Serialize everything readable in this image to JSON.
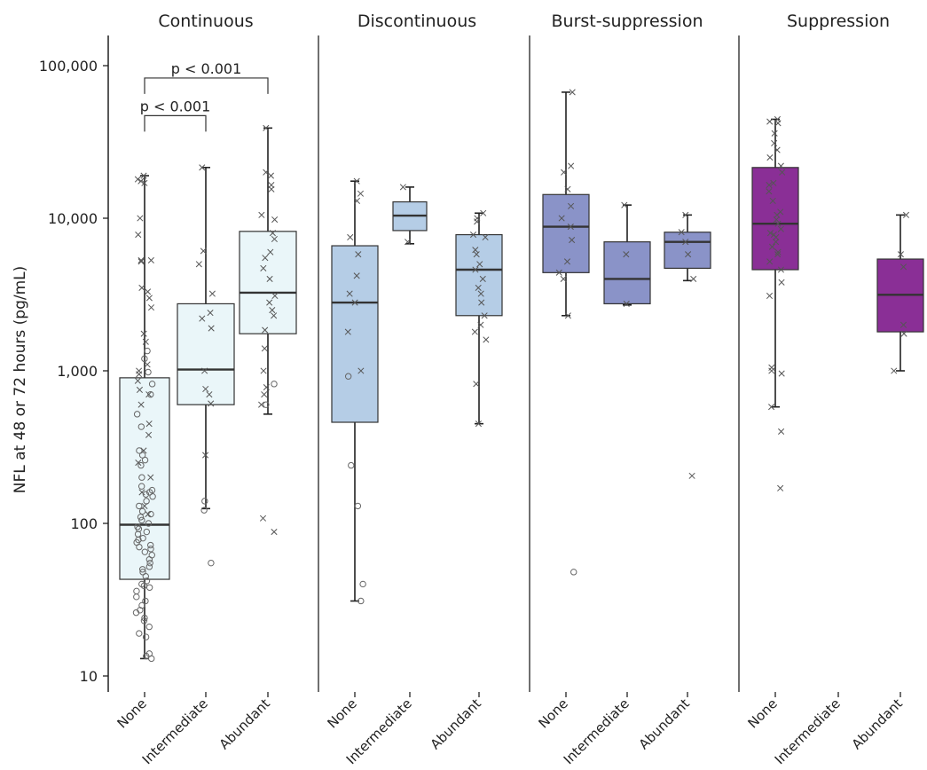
{
  "chart_data": {
    "type": "box",
    "ylabel": "NFL at 48 or 72 hours (pg/mL)",
    "yscale": "log",
    "ylim": [
      8,
      160000
    ],
    "yticks": [
      10,
      100,
      1000,
      10000,
      100000
    ],
    "ytick_labels": [
      "10",
      "100",
      "1,000",
      "10,000",
      "100,000"
    ],
    "categories": [
      "None",
      "Intermediate",
      "Abundant"
    ],
    "panels": [
      {
        "title": "Continuous",
        "box_color": "#eaf6f9",
        "boxes": [
          {
            "category": "None",
            "q1": 43,
            "median": 98,
            "q3": 900,
            "whisker_low": 13,
            "whisker_high": 19000
          },
          {
            "category": "Intermediate",
            "q1": 600,
            "median": 1020,
            "q3": 2750,
            "whisker_low": 125,
            "whisker_high": 21500
          },
          {
            "category": "Abundant",
            "q1": 1750,
            "median": 3250,
            "q3": 8200,
            "whisker_low": 520,
            "whisker_high": 39000
          }
        ],
        "points_x": [
          [
            19000,
            17000,
            17500,
            18000,
            10000,
            7800,
            5300,
            5300,
            5200,
            3500,
            3300,
            3000,
            2600,
            1750,
            1550,
            1100,
            1000,
            950,
            860,
            750,
            700,
            600,
            450,
            380,
            300,
            250,
            200,
            160,
            130,
            115
          ],
          [
            21500,
            6100,
            5000,
            3200,
            2400,
            2200,
            1900,
            1000,
            760,
            700,
            610,
            280
          ],
          [
            39000,
            20000,
            19000,
            16500,
            15500,
            10500,
            9800,
            8000,
            7300,
            6000,
            5500,
            4700,
            4000,
            3100,
            2800,
            2500,
            2300,
            1850,
            1400,
            1000,
            780,
            700,
            600,
            108,
            88
          ]
        ],
        "points_o": [
          [
            1350,
            1200,
            980,
            820,
            700,
            520,
            430,
            300,
            280,
            260,
            240,
            200,
            175,
            165,
            160,
            155,
            150,
            140,
            130,
            120,
            115,
            110,
            105,
            100,
            95,
            92,
            88,
            85,
            80,
            78,
            75,
            72,
            70,
            68,
            65,
            62,
            58,
            55,
            52,
            50,
            48,
            45,
            42,
            40,
            39,
            38,
            36,
            33,
            31,
            29,
            27,
            26,
            24,
            23,
            21,
            19,
            18,
            14,
            13.5,
            13
          ],
          [
            140,
            122,
            55
          ],
          [
            820,
            600
          ]
        ],
        "annotations": [
          {
            "text": "p < 0.001",
            "from": "None",
            "to": "Intermediate",
            "y": 47000
          },
          {
            "text": "p < 0.001",
            "from": "None",
            "to": "Abundant",
            "y": 83000
          }
        ]
      },
      {
        "title": "Discontinuous",
        "box_color": "#b5cde6",
        "boxes": [
          {
            "category": "None",
            "q1": 460,
            "median": 2800,
            "q3": 6600,
            "whisker_low": 31,
            "whisker_high": 17500
          },
          {
            "category": "Intermediate",
            "q1": 8300,
            "median": 10400,
            "q3": 12800,
            "whisker_low": 6800,
            "whisker_high": 16000
          },
          {
            "category": "Abundant",
            "q1": 2300,
            "median": 4600,
            "q3": 7800,
            "whisker_low": 450,
            "whisker_high": 10800
          }
        ],
        "points_x": [
          [
            17500,
            14500,
            13000,
            7500,
            5800,
            4200,
            3200,
            2800,
            1800,
            1000
          ],
          [
            16000,
            7000
          ],
          [
            10800,
            10000,
            9500,
            7800,
            7500,
            6200,
            5800,
            5000,
            4600,
            4000,
            3500,
            3200,
            2800,
            2300,
            2000,
            1800,
            1600,
            820,
            450
          ]
        ],
        "points_o": [
          [
            920,
            240,
            130,
            40,
            31
          ],
          [],
          []
        ],
        "annotations": []
      },
      {
        "title": "Burst-suppression",
        "box_color": "#8a93c8",
        "boxes": [
          {
            "category": "None",
            "q1": 4400,
            "median": 8800,
            "q3": 14300,
            "whisker_low": 2300,
            "whisker_high": 67000
          },
          {
            "category": "Intermediate",
            "q1": 2750,
            "median": 4000,
            "q3": 7000,
            "whisker_low": 2700,
            "whisker_high": 12200
          },
          {
            "category": "Abundant",
            "q1": 4700,
            "median": 7000,
            "q3": 8100,
            "whisker_low": 3900,
            "whisker_high": 10500
          }
        ],
        "points_x": [
          [
            67000,
            22000,
            20000,
            15500,
            12000,
            10000,
            8800,
            7200,
            5200,
            4400,
            4000,
            2300
          ],
          [
            12200,
            5800,
            2750
          ],
          [
            10500,
            8100,
            7000,
            5800,
            4000,
            205
          ]
        ],
        "points_o": [
          [
            48
          ],
          [],
          []
        ],
        "annotations": []
      },
      {
        "title": "Suppression",
        "box_color": "#8a2f96",
        "boxes": [
          {
            "category": "None",
            "q1": 4600,
            "median": 9200,
            "q3": 21500,
            "whisker_low": 580,
            "whisker_high": 44500
          },
          {
            "category": "Abundant",
            "q1": 1800,
            "median": 3150,
            "q3": 5400,
            "whisker_low": 1000,
            "whisker_high": 10500
          }
        ],
        "points_x": [
          [
            44500,
            43000,
            42000,
            36000,
            31000,
            28000,
            25000,
            22000,
            20000,
            17000,
            16500,
            15000,
            13000,
            11000,
            10500,
            9800,
            9200,
            8500,
            8000,
            7800,
            7500,
            7000,
            6500,
            6000,
            5800,
            5200,
            4600,
            3800,
            3100,
            1050,
            1000,
            960,
            580,
            400,
            170
          ],
          [],
          [
            10500,
            5800,
            4800,
            2000,
            1750,
            1000
          ]
        ],
        "points_o": [
          [],
          [],
          []
        ],
        "annotations": []
      }
    ]
  }
}
